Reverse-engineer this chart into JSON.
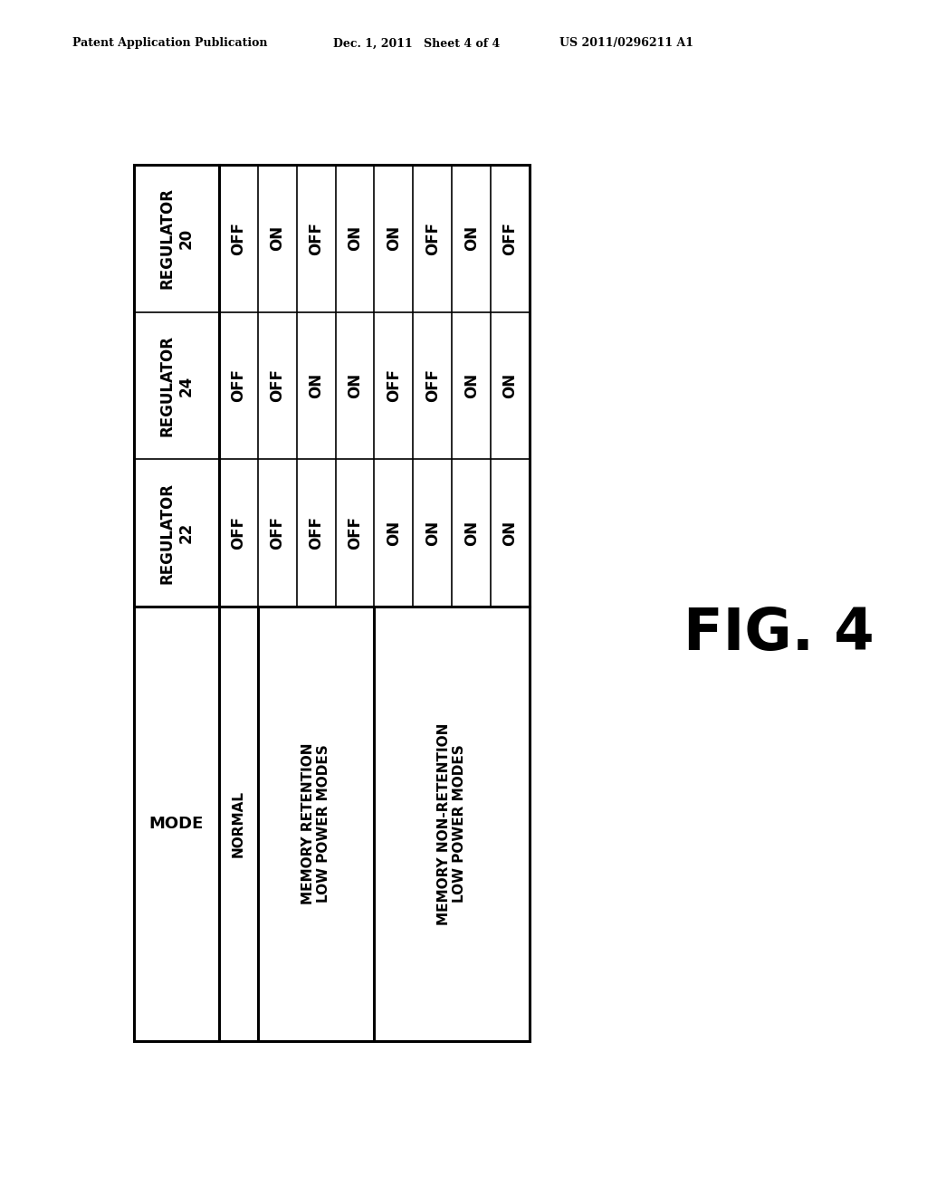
{
  "header_text": "Patent Application Publication",
  "date_text": "Dec. 1, 2011",
  "sheet_text": "Sheet 4 of 4",
  "patent_text": "US 2011/0296211 A1",
  "fig_label": "FIG. 4",
  "reg20": [
    "OFF",
    "ON",
    "OFF",
    "ON",
    "ON",
    "OFF",
    "ON",
    "OFF"
  ],
  "reg24": [
    "OFF",
    "OFF",
    "ON",
    "ON",
    "OFF",
    "OFF",
    "ON",
    "ON"
  ],
  "reg22": [
    "OFF",
    "OFF",
    "OFF",
    "OFF",
    "ON",
    "ON",
    "ON",
    "ON"
  ],
  "mode_groups": [
    {
      "label": "NORMAL",
      "span": 1
    },
    {
      "label": "MEMORY RETENTION\nLOW POWER MODES",
      "span": 3
    },
    {
      "label": "MEMORY NON-RETENTION\nLOW POWER MODES",
      "span": 4
    }
  ],
  "row_labels": [
    "REGULATOR\n20",
    "REGULATOR\n24",
    "REGULATOR\n22",
    "MODE"
  ],
  "bg_color": "#ffffff",
  "text_color": "#000000"
}
